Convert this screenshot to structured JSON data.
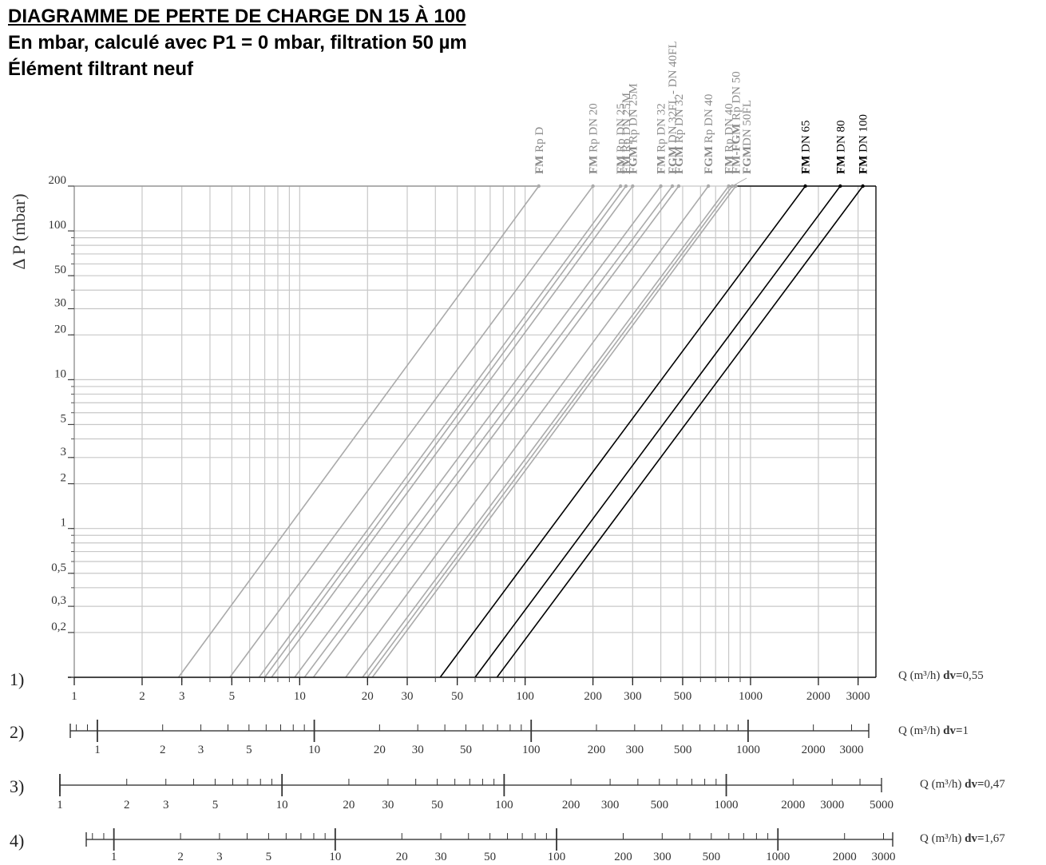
{
  "header": {
    "title": "DIAGRAMME DE PERTE DE CHARGE DN 15 À 100",
    "subtitle": "En mbar, calculé avec P1 = 0 mbar, filtration 50 µm",
    "note": "Élément filtrant neuf"
  },
  "chart_data": {
    "type": "line",
    "scale": "log-log",
    "grid": true,
    "ylabel": "Δ P (mbar)",
    "ylim": [
      0.1,
      200
    ],
    "xlim": [
      1,
      3600
    ],
    "y_ticks": [
      {
        "v": 200,
        "label": "200"
      },
      {
        "v": 100,
        "label": "100"
      },
      {
        "v": 50,
        "label": "50"
      },
      {
        "v": 30,
        "label": "30"
      },
      {
        "v": 20,
        "label": "20"
      },
      {
        "v": 10,
        "label": "10"
      },
      {
        "v": 5,
        "label": "5"
      },
      {
        "v": 3,
        "label": "3"
      },
      {
        "v": 2,
        "label": "2"
      },
      {
        "v": 1,
        "label": "1"
      },
      {
        "v": 0.5,
        "label": "0,5"
      },
      {
        "v": 0.3,
        "label": "0,3"
      },
      {
        "v": 0.2,
        "label": "0,2"
      }
    ],
    "x_ticks": [
      {
        "v": 1,
        "label": "1"
      },
      {
        "v": 2,
        "label": "2"
      },
      {
        "v": 3,
        "label": "3"
      },
      {
        "v": 5,
        "label": "5"
      },
      {
        "v": 10,
        "label": "10"
      },
      {
        "v": 20,
        "label": "20"
      },
      {
        "v": 30,
        "label": "30"
      },
      {
        "v": 50,
        "label": "50"
      },
      {
        "v": 100,
        "label": "100"
      },
      {
        "v": 200,
        "label": "200"
      },
      {
        "v": 300,
        "label": "300"
      },
      {
        "v": 500,
        "label": "500"
      },
      {
        "v": 1000,
        "label": "1000"
      },
      {
        "v": 2000,
        "label": "2000"
      },
      {
        "v": 3000,
        "label": "3000"
      }
    ],
    "series": [
      {
        "label_parts": [
          {
            "t": "FM",
            "b": true
          },
          {
            "t": " Rp D"
          }
        ],
        "x_at_min": 2.9,
        "x_at_max": 115,
        "color": "#aaaaaa"
      },
      {
        "label_parts": [
          {
            "t": "FM",
            "b": true
          },
          {
            "t": " Rp DN 20"
          }
        ],
        "x_at_min": 4.9,
        "x_at_max": 200,
        "color": "#aaaaaa"
      },
      {
        "label_parts": [
          {
            "t": "FM",
            "b": true
          },
          {
            "t": " Rp DN 25"
          }
        ],
        "x_at_min": 6.6,
        "x_at_max": 265,
        "color": "#aaaaaa"
      },
      {
        "label_parts": [
          {
            "t": "FM",
            "b": true
          },
          {
            "t": " Rp DN 25M"
          }
        ],
        "x_at_min": 7.0,
        "x_at_max": 280,
        "color": "#aaaaaa"
      },
      {
        "label_parts": [
          {
            "t": "FGM",
            "b": true
          },
          {
            "t": " Rp DN 25M"
          }
        ],
        "x_at_min": 7.5,
        "x_at_max": 300,
        "color": "#aaaaaa"
      },
      {
        "label_parts": [
          {
            "t": "FM",
            "b": true
          },
          {
            "t": " Rp DN 32"
          }
        ],
        "x_at_min": 9.5,
        "x_at_max": 400,
        "color": "#aaaaaa"
      },
      {
        "label_parts": [
          {
            "t": "FGM",
            "b": true
          },
          {
            "t": " DN 32FL - DN 40FL"
          }
        ],
        "x_at_min": 10.5,
        "x_at_max": 450,
        "color": "#aaaaaa"
      },
      {
        "label_parts": [
          {
            "t": "FGM",
            "b": true
          },
          {
            "t": " Rp DN 32"
          }
        ],
        "x_at_min": 11.5,
        "x_at_max": 480,
        "color": "#aaaaaa"
      },
      {
        "label_parts": [
          {
            "t": "FGM",
            "b": true
          },
          {
            "t": " Rp DN 40"
          }
        ],
        "x_at_min": 16,
        "x_at_max": 650,
        "color": "#aaaaaa"
      },
      {
        "label_parts": [
          {
            "t": "FM",
            "b": true
          },
          {
            "t": " Rp DN 40"
          }
        ],
        "x_at_min": 19,
        "x_at_max": 800,
        "color": "#aaaaaa"
      },
      {
        "label_parts": [
          {
            "t": "FGM",
            "b": true
          },
          {
            "t": "DN 50FL"
          }
        ],
        "x_at_min": 20,
        "x_at_max": 830,
        "color": "#aaaaaa"
      },
      {
        "label_parts": [
          {
            "t": "FM-FGM",
            "b": true
          },
          {
            "t": " Rp DN 50"
          }
        ],
        "x_at_min": 21,
        "x_at_max": 860,
        "color": "#aaaaaa"
      },
      {
        "label_parts": [
          {
            "t": "FM",
            "b": true
          },
          {
            "t": " DN 65"
          }
        ],
        "x_at_min": 42,
        "x_at_max": 1750,
        "color": "#000000"
      },
      {
        "label_parts": [
          {
            "t": "FM",
            "b": true
          },
          {
            "t": " DN 80"
          }
        ],
        "x_at_min": 60,
        "x_at_max": 2500,
        "color": "#000000"
      },
      {
        "label_parts": [
          {
            "t": "FM",
            "b": true
          },
          {
            "t": " DN 100"
          }
        ],
        "x_at_min": 75,
        "x_at_max": 3150,
        "color": "#000000"
      }
    ],
    "scales": [
      {
        "id": "1)",
        "label": "Q (m³/h)",
        "dv_label": "dv=",
        "dv_value": "0,55",
        "xmin": 1,
        "xmax": 3600,
        "labels": [
          "1",
          "2",
          "3",
          "5",
          "10",
          "20",
          "30",
          "50",
          "100",
          "200",
          "300",
          "500",
          "1000",
          "2000",
          "3000"
        ]
      },
      {
        "id": "2)",
        "label": "Q (m³/h)",
        "dv_label": "dv=",
        "dv_value": "1",
        "xmin": 0.75,
        "xmax": 3600,
        "labels": [
          "1",
          "2",
          "3",
          "5",
          "10",
          "20",
          "30",
          "50",
          "100",
          "200",
          "300",
          "500",
          "1000",
          "2000",
          "3000"
        ]
      },
      {
        "id": "3)",
        "label": "Q (m³/h)",
        "dv_label": "dv=",
        "dv_value": "0,47",
        "xmin": 1,
        "xmax": 5000,
        "labels": [
          "1",
          "2",
          "3",
          "5",
          "10",
          "20",
          "30",
          "50",
          "100",
          "200",
          "300",
          "500",
          "1000",
          "2000",
          "3000",
          "5000"
        ]
      },
      {
        "id": "4)",
        "label": "Q (m³/h)",
        "dv_label": "dv=",
        "dv_value": "1,67",
        "xmin": 0.75,
        "xmax": 3300,
        "labels": [
          "1",
          "2",
          "3",
          "5",
          "10",
          "20",
          "30",
          "50",
          "100",
          "200",
          "300",
          "500",
          "1000",
          "2000",
          "3000"
        ]
      }
    ]
  }
}
